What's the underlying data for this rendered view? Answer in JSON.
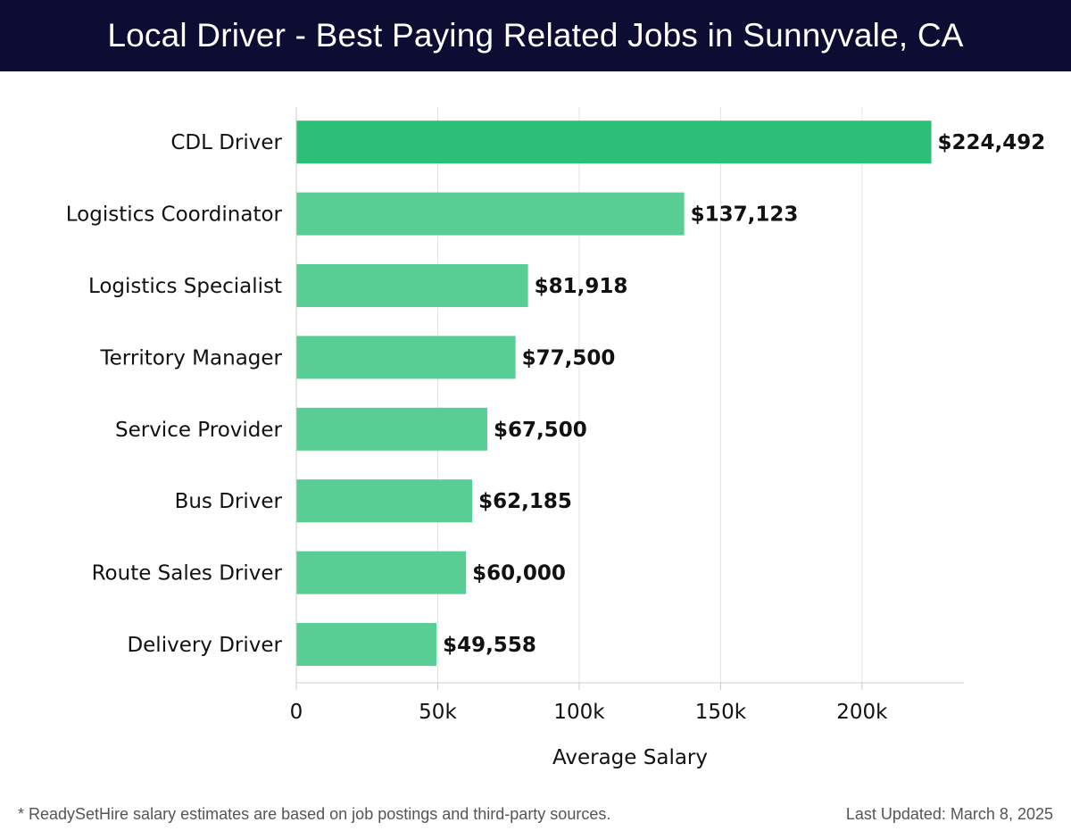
{
  "header": {
    "title": "Local Driver - Best Paying Related Jobs in Sunnyvale, CA"
  },
  "chart_data": {
    "type": "bar",
    "orientation": "horizontal",
    "title": "Local Driver - Best Paying Related Jobs in Sunnyvale, CA",
    "xlabel": "Average Salary",
    "ylabel": "",
    "xlim": [
      0,
      236000
    ],
    "xticks": [
      0,
      50000,
      100000,
      150000,
      200000
    ],
    "xtick_labels": [
      "0",
      "50k",
      "100k",
      "150k",
      "200k"
    ],
    "grid": true,
    "categories": [
      "CDL Driver",
      "Logistics Coordinator",
      "Logistics Specialist",
      "Territory Manager",
      "Service Provider",
      "Bus Driver",
      "Route Sales Driver",
      "Delivery Driver"
    ],
    "values": [
      224492,
      137123,
      81918,
      77500,
      67500,
      62185,
      60000,
      49558
    ],
    "value_labels": [
      "$224,492",
      "$137,123",
      "$81,918",
      "$77,500",
      "$67,500",
      "$62,185",
      "$60,000",
      "$49,558"
    ],
    "colors": {
      "top_bar": "#2bbf77",
      "bar": "#4fcb8f",
      "grid": "#e3e3e3",
      "axis": "#cccccc",
      "text": "#111111"
    }
  },
  "footer": {
    "note": "* ReadySetHire salary estimates are based on job postings and third-party sources.",
    "updated": "Last Updated: March 8, 2025"
  }
}
